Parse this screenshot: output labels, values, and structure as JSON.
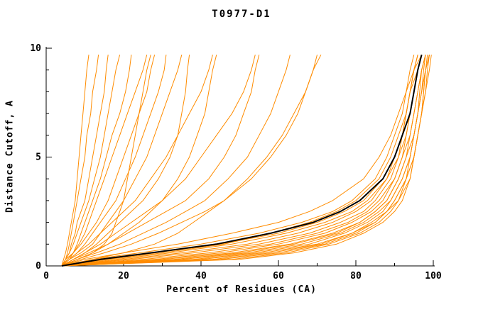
{
  "chart_data": {
    "type": "line",
    "title": "T0977-D1",
    "xlabel": "Percent of Residues (CA)",
    "ylabel": "Distance Cutoff, A",
    "xlim": [
      0,
      100
    ],
    "ylim": [
      0,
      10
    ],
    "x_major_ticks": [
      0,
      20,
      40,
      60,
      80,
      100
    ],
    "x_minor_ticks": [
      10,
      30,
      50,
      70,
      90
    ],
    "y_major_ticks": [
      0,
      5,
      10
    ],
    "y_minor_ticks": [
      1,
      2,
      3,
      4,
      6,
      7,
      8,
      9
    ],
    "grid": false,
    "legend": "none",
    "colors": {
      "model": "#ff8c00",
      "reference": "#000000"
    },
    "cutoffs": [
      0,
      0.3,
      0.6,
      1.0,
      1.5,
      2.0,
      2.5,
      3.0,
      4.0,
      5.0,
      6.0,
      7.0,
      8.0,
      9.0,
      9.7
    ],
    "orange_curves": [
      [
        4,
        4.5,
        5,
        5.5,
        6,
        6.5,
        7,
        7.5,
        8,
        8.5,
        9,
        9.5,
        10,
        10.5,
        11
      ],
      [
        4,
        5,
        5.5,
        6,
        6.5,
        7,
        7.5,
        8,
        9,
        10,
        10.5,
        11.5,
        12,
        13,
        13.5
      ],
      [
        4,
        5,
        6,
        6.5,
        7.5,
        8,
        9,
        10,
        11,
        12,
        13,
        14,
        15,
        15.5,
        16
      ],
      [
        4,
        5,
        6,
        7,
        8,
        9,
        10,
        11,
        12.5,
        14,
        15,
        16,
        17,
        18,
        19
      ],
      [
        4,
        5.5,
        7,
        8,
        9,
        10,
        11,
        12,
        14,
        15.5,
        17,
        19,
        20.5,
        21.5,
        22
      ],
      [
        4,
        6,
        7,
        8.5,
        10,
        11,
        12,
        13,
        15,
        17,
        19,
        21,
        23,
        25,
        26
      ],
      [
        4,
        5,
        7,
        9,
        11,
        13,
        14.5,
        16,
        18,
        20,
        22,
        24,
        26,
        27,
        28
      ],
      [
        4,
        6,
        8,
        10,
        12,
        14,
        16,
        18,
        20.5,
        23,
        25,
        27,
        29,
        30.5,
        31
      ],
      [
        4,
        6,
        9,
        12,
        14,
        16,
        18,
        20,
        23,
        26,
        28,
        30,
        32,
        34,
        35
      ],
      [
        4,
        8,
        12,
        15,
        17,
        18,
        19,
        20,
        21,
        22,
        23,
        24,
        25,
        26,
        27
      ],
      [
        4,
        6,
        8,
        11,
        14,
        17,
        20,
        23,
        27,
        31,
        34,
        37,
        40,
        42,
        43
      ],
      [
        4,
        7,
        10,
        14,
        18,
        22,
        26,
        30,
        36,
        40,
        44,
        48,
        51,
        53,
        54
      ],
      [
        4,
        8,
        12,
        16,
        20,
        24,
        27,
        30,
        34,
        37,
        39,
        41,
        42,
        43,
        44
      ],
      [
        4,
        7,
        10,
        13,
        16,
        19,
        22,
        25,
        29,
        32,
        34,
        35,
        36,
        36.5,
        37
      ],
      [
        4,
        7,
        11,
        16,
        21,
        26,
        31,
        36,
        42,
        46,
        49,
        51,
        53,
        54,
        55
      ],
      [
        4,
        8,
        13,
        19,
        25,
        31,
        36,
        41,
        47,
        52,
        55,
        58,
        60,
        62,
        63
      ],
      [
        4,
        9,
        15,
        22,
        29,
        35,
        41,
        46,
        53,
        58,
        62,
        65,
        67,
        69,
        70
      ],
      [
        4,
        12,
        20,
        28,
        34,
        38,
        42,
        46,
        52,
        57,
        61,
        64,
        67,
        69,
        71
      ],
      [
        4,
        10,
        20,
        34,
        48,
        60,
        68,
        74,
        82,
        86,
        89,
        91,
        93,
        95,
        96
      ],
      [
        4,
        12,
        24,
        40,
        55,
        66,
        74,
        79,
        85,
        88,
        90,
        92,
        93,
        94,
        95
      ],
      [
        4,
        15,
        28,
        45,
        60,
        70,
        77,
        82,
        87,
        90,
        92,
        93,
        94,
        95,
        96
      ],
      [
        4,
        16,
        30,
        46,
        58,
        68,
        75,
        80,
        86,
        89,
        91,
        93,
        94,
        96,
        97
      ],
      [
        4,
        18,
        32,
        48,
        62,
        72,
        79,
        83,
        88,
        90,
        92,
        93,
        94,
        95,
        97
      ],
      [
        4,
        20,
        35,
        52,
        65,
        74,
        80,
        84,
        88,
        91,
        92,
        93,
        94,
        95,
        96
      ],
      [
        4,
        22,
        38,
        55,
        68,
        76,
        82,
        85,
        89,
        91,
        93,
        94,
        95,
        96,
        97
      ],
      [
        4,
        25,
        42,
        58,
        70,
        78,
        83,
        86,
        90,
        92,
        93,
        94,
        95,
        96,
        97
      ],
      [
        4,
        28,
        45,
        60,
        72,
        79,
        84,
        87,
        90,
        92,
        94,
        95,
        96,
        97,
        98
      ],
      [
        4,
        30,
        48,
        63,
        74,
        81,
        85,
        88,
        91,
        93,
        94,
        95,
        96,
        97,
        98
      ],
      [
        4,
        33,
        50,
        64,
        75,
        81,
        85,
        88,
        91,
        93,
        95,
        96,
        97,
        97.5,
        98
      ],
      [
        4,
        35,
        52,
        66,
        76,
        82,
        86,
        89,
        92,
        94,
        95,
        96,
        96.5,
        97,
        98
      ],
      [
        4,
        38,
        54,
        68,
        77,
        83,
        87,
        89,
        92,
        94,
        95,
        96,
        97,
        98,
        98.5
      ],
      [
        4,
        40,
        56,
        70,
        79,
        84,
        88,
        90,
        93,
        94,
        95,
        96,
        97,
        98,
        99
      ],
      [
        4,
        43,
        58,
        71,
        79,
        85,
        88,
        90,
        93,
        95,
        96,
        97,
        97.5,
        98,
        99
      ],
      [
        4,
        45,
        60,
        72,
        80,
        85,
        88,
        91,
        93,
        95,
        96,
        97,
        97.5,
        98,
        99
      ],
      [
        4,
        48,
        62,
        73,
        81,
        86,
        89,
        91,
        94,
        95,
        96,
        97,
        98,
        99,
        99.5
      ],
      [
        4,
        50,
        64,
        75,
        82,
        87,
        90,
        92,
        94,
        95,
        96,
        97,
        98,
        98.5,
        99
      ]
    ],
    "black_curve": [
      4,
      14,
      27,
      44,
      58,
      69,
      76,
      81,
      87,
      90,
      92,
      94,
      95,
      96,
      97
    ]
  }
}
